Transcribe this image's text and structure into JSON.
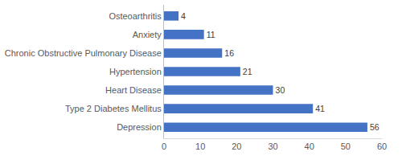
{
  "chart_data": {
    "type": "bar",
    "orientation": "horizontal",
    "categories": [
      "Depression",
      "Type 2 Diabetes Mellitus",
      "Heart Disease",
      "Hypertension",
      "Chronic Obstructive Pulmonary Disease",
      "Anxiety",
      "Osteoarthritis"
    ],
    "values": [
      56,
      41,
      30,
      21,
      16,
      11,
      4
    ],
    "color": "#4472c4",
    "xlim": [
      0,
      60
    ],
    "xticks": [
      0,
      10,
      20,
      30,
      40,
      50,
      60
    ],
    "grid": false,
    "data_labels": true
  }
}
